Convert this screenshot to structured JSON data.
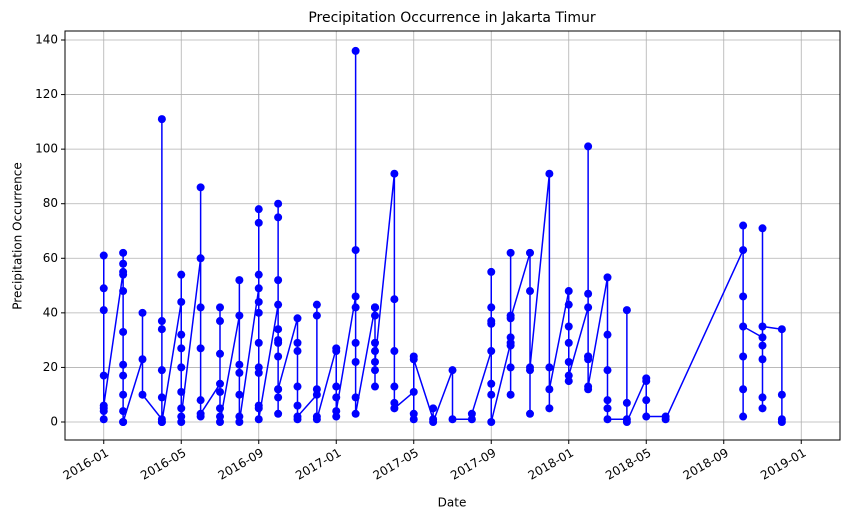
{
  "chart_data": {
    "type": "line",
    "title": "Precipitation Occurrence in Jakarta Timur",
    "x_label": "Date",
    "y_label": "Precipitation Occurrence",
    "color": "#0000ff",
    "grid": true,
    "x": [
      "2016-01",
      "2016-01",
      "2016-01",
      "2016-01",
      "2016-01",
      "2016-01",
      "2016-01",
      "2016-01",
      "2016-02",
      "2016-02",
      "2016-02",
      "2016-02",
      "2016-02",
      "2016-02",
      "2016-02",
      "2016-02",
      "2016-02",
      "2016-02",
      "2016-02",
      "2016-02",
      "2016-03",
      "2016-03",
      "2016-03",
      "2016-04",
      "2016-04",
      "2016-04",
      "2016-04",
      "2016-04",
      "2016-04",
      "2016-04",
      "2016-04",
      "2016-05",
      "2016-05",
      "2016-05",
      "2016-05",
      "2016-05",
      "2016-05",
      "2016-05",
      "2016-05",
      "2016-05",
      "2016-06",
      "2016-06",
      "2016-06",
      "2016-06",
      "2016-06",
      "2016-06",
      "2016-06",
      "2016-07",
      "2016-07",
      "2016-07",
      "2016-07",
      "2016-07",
      "2016-07",
      "2016-07",
      "2016-07",
      "2016-08",
      "2016-08",
      "2016-08",
      "2016-08",
      "2016-08",
      "2016-08",
      "2016-08",
      "2016-09",
      "2016-09",
      "2016-09",
      "2016-09",
      "2016-09",
      "2016-09",
      "2016-09",
      "2016-09",
      "2016-09",
      "2016-09",
      "2016-09",
      "2016-09",
      "2016-10",
      "2016-10",
      "2016-10",
      "2016-10",
      "2016-10",
      "2016-10",
      "2016-10",
      "2016-10",
      "2016-10",
      "2016-10",
      "2016-10",
      "2016-10",
      "2016-11",
      "2016-11",
      "2016-11",
      "2016-11",
      "2016-11",
      "2016-11",
      "2016-11",
      "2016-12",
      "2016-12",
      "2016-12",
      "2016-12",
      "2016-12",
      "2016-12",
      "2017-01",
      "2017-01",
      "2017-01",
      "2017-01",
      "2017-01",
      "2017-01",
      "2017-02",
      "2017-02",
      "2017-02",
      "2017-02",
      "2017-02",
      "2017-02",
      "2017-02",
      "2017-02",
      "2017-03",
      "2017-03",
      "2017-03",
      "2017-03",
      "2017-03",
      "2017-03",
      "2017-03",
      "2017-03",
      "2017-03",
      "2017-04",
      "2017-04",
      "2017-04",
      "2017-04",
      "2017-04",
      "2017-04",
      "2017-05",
      "2017-05",
      "2017-05",
      "2017-05",
      "2017-05",
      "2017-06",
      "2017-06",
      "2017-06",
      "2017-07",
      "2017-07",
      "2017-08",
      "2017-08",
      "2017-09",
      "2017-09",
      "2017-09",
      "2017-09",
      "2017-09",
      "2017-09",
      "2017-09",
      "2017-09",
      "2017-10",
      "2017-10",
      "2017-10",
      "2017-10",
      "2017-10",
      "2017-10",
      "2017-10",
      "2017-10",
      "2017-11",
      "2017-11",
      "2017-11",
      "2017-11",
      "2017-11",
      "2017-12",
      "2017-12",
      "2017-12",
      "2017-12",
      "2018-01",
      "2018-01",
      "2018-01",
      "2018-01",
      "2018-01",
      "2018-01",
      "2018-01",
      "2018-02",
      "2018-02",
      "2018-02",
      "2018-02",
      "2018-02",
      "2018-02",
      "2018-02",
      "2018-02",
      "2018-03",
      "2018-03",
      "2018-03",
      "2018-03",
      "2018-03",
      "2018-03",
      "2018-04",
      "2018-04",
      "2018-04",
      "2018-04",
      "2018-05",
      "2018-05",
      "2018-05",
      "2018-05",
      "2018-06",
      "2018-06",
      "2018-10",
      "2018-10",
      "2018-10",
      "2018-10",
      "2018-10",
      "2018-10",
      "2018-10",
      "2018-11",
      "2018-11",
      "2018-11",
      "2018-11",
      "2018-11",
      "2018-11",
      "2018-11",
      "2018-12",
      "2018-12",
      "2018-12",
      "2018-12"
    ],
    "values": [
      1,
      5,
      61,
      17,
      4,
      49,
      41,
      6,
      55,
      21,
      0,
      33,
      4,
      58,
      54,
      10,
      48,
      17,
      62,
      0,
      23,
      40,
      10,
      1,
      9,
      34,
      37,
      0,
      111,
      19,
      0,
      44,
      32,
      11,
      20,
      0,
      54,
      27,
      5,
      2,
      60,
      42,
      86,
      27,
      2,
      8,
      3,
      14,
      11,
      25,
      37,
      42,
      5,
      2,
      0,
      39,
      52,
      10,
      2,
      21,
      18,
      0,
      49,
      29,
      5,
      78,
      73,
      20,
      44,
      6,
      40,
      54,
      18,
      1,
      43,
      30,
      80,
      12,
      24,
      75,
      29,
      9,
      52,
      34,
      3,
      12,
      38,
      26,
      29,
      6,
      13,
      1,
      2,
      10,
      2,
      39,
      43,
      12,
      1,
      27,
      26,
      13,
      9,
      2,
      4,
      46,
      63,
      136,
      22,
      9,
      42,
      29,
      3,
      42,
      19,
      39,
      26,
      13,
      42,
      29,
      42,
      22,
      91,
      45,
      7,
      13,
      26,
      5,
      11,
      1,
      3,
      24,
      23,
      1,
      5,
      0,
      19,
      1,
      1,
      3,
      26,
      37,
      55,
      14,
      42,
      36,
      10,
      0,
      29,
      28,
      31,
      10,
      39,
      20,
      62,
      38,
      62,
      48,
      19,
      3,
      20,
      91,
      20,
      5,
      12,
      48,
      35,
      29,
      22,
      43,
      15,
      17,
      42,
      24,
      12,
      23,
      101,
      47,
      24,
      13,
      53,
      19,
      5,
      8,
      32,
      1,
      1,
      7,
      41,
      0,
      16,
      8,
      15,
      2,
      2,
      1,
      63,
      46,
      24,
      12,
      2,
      72,
      35,
      31,
      71,
      9,
      23,
      28,
      5,
      35,
      34,
      0,
      1,
      10
    ],
    "xlim": [
      "2015-11",
      "2019-03"
    ],
    "xticks": [
      "2016-01",
      "2016-05",
      "2016-09",
      "2017-01",
      "2017-05",
      "2017-09",
      "2018-01",
      "2018-05",
      "2018-09",
      "2019-01"
    ],
    "ylim": [
      -6.6,
      143.3
    ],
    "yticks": [
      0,
      20,
      40,
      60,
      80,
      100,
      120,
      140
    ]
  }
}
